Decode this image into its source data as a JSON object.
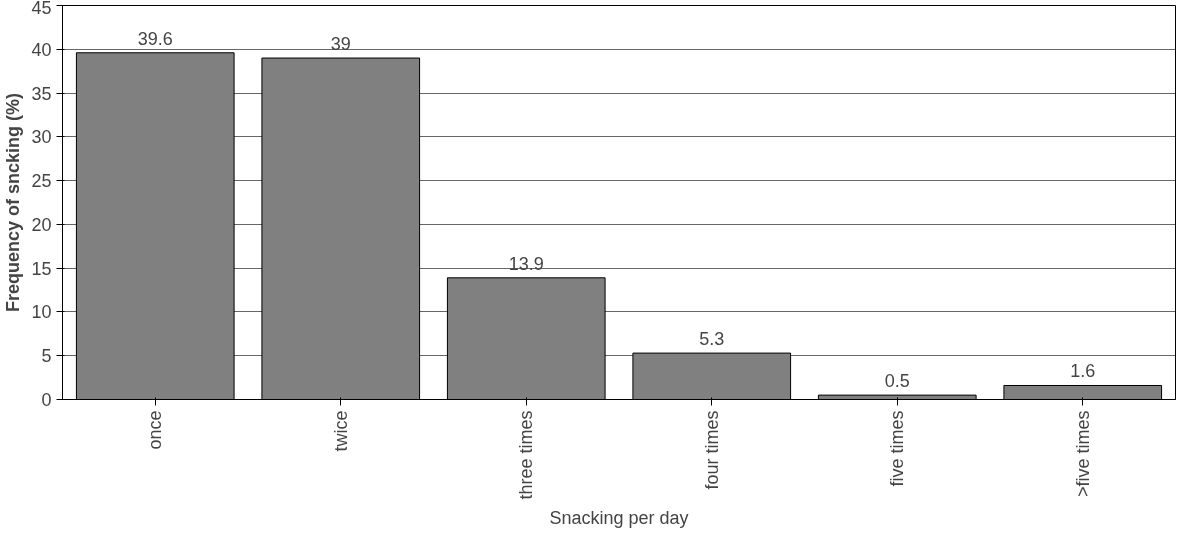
{
  "chart_data": {
    "type": "bar",
    "xlabel": "Snacking per day",
    "ylabel": "Frequency of sncking (%)",
    "categories": [
      "once",
      "twice",
      "three times",
      "four times",
      "five times",
      ">five times"
    ],
    "values": [
      39.6,
      39,
      13.9,
      5.3,
      0.5,
      1.6
    ],
    "color": "#808080",
    "data_labels": true,
    "ylim": [
      0,
      45
    ],
    "yticks": [
      0,
      5,
      10,
      15,
      20,
      25,
      30,
      35,
      40,
      45
    ],
    "grid": "y"
  }
}
